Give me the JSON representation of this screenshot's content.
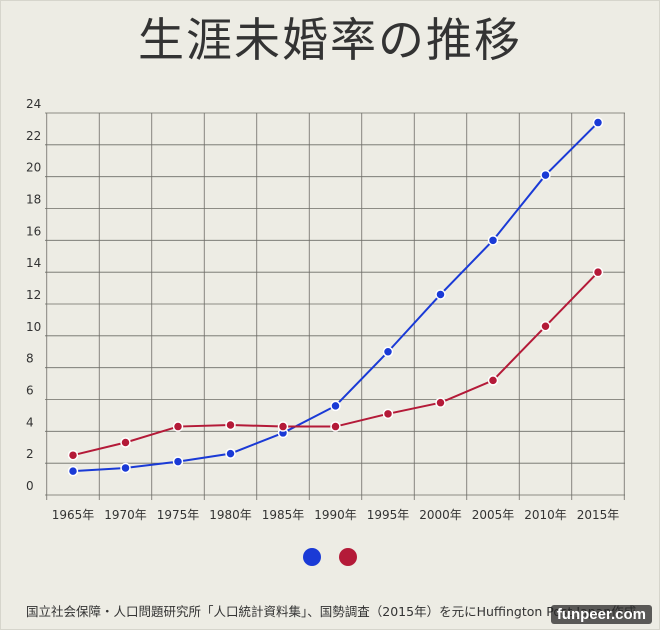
{
  "chart_data": {
    "type": "line",
    "title": "生涯未婚率の推移",
    "categories": [
      "1965年",
      "1970年",
      "1975年",
      "1980年",
      "1985年",
      "1990年",
      "1995年",
      "2000年",
      "2005年",
      "2010年",
      "2015年"
    ],
    "y_ticks": [
      "0",
      "2",
      "4",
      "6",
      "8",
      "10",
      "12",
      "14",
      "16",
      "18",
      "20",
      "22",
      "24"
    ],
    "ylim": [
      0,
      24
    ],
    "grid": true,
    "series": [
      {
        "color": "#1a3ad6",
        "values": [
          1.5,
          1.7,
          2.1,
          2.6,
          3.9,
          5.6,
          9.0,
          12.6,
          16.0,
          20.1,
          23.4
        ]
      },
      {
        "color": "#b41a38",
        "values": [
          2.5,
          3.3,
          4.3,
          4.4,
          4.3,
          4.3,
          5.1,
          5.8,
          7.2,
          10.6,
          14.0
        ]
      }
    ],
    "source": "国立社会保障・人口問題研究所「人口統計資料集」、国勢調査（2015年）を元にHuffington Post Japan作成"
  },
  "watermark": "funpeer.com"
}
